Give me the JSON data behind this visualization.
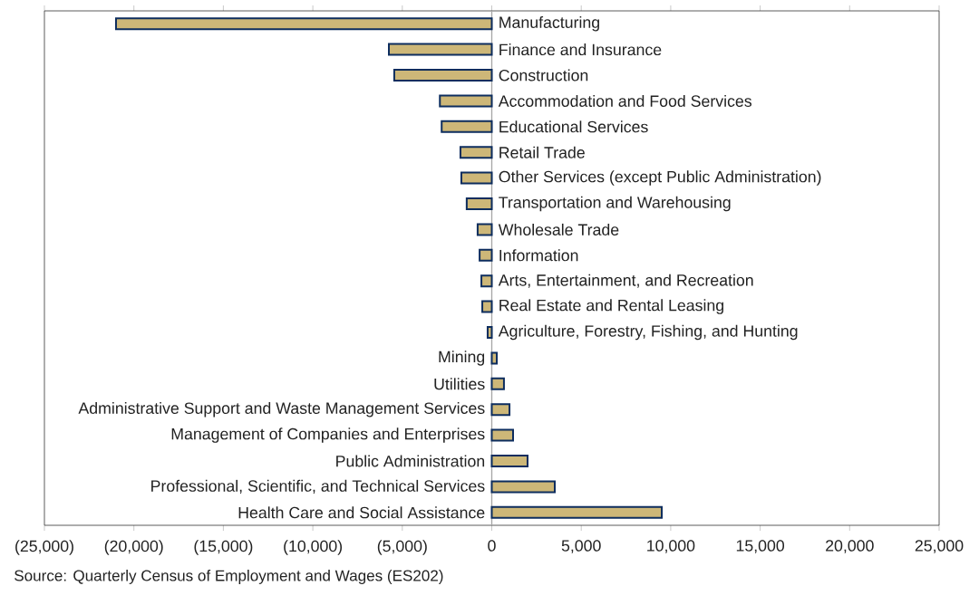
{
  "chart_data": {
    "type": "bar",
    "orientation": "horizontal",
    "categories": [
      "Manufacturing",
      "Finance and Insurance",
      "Construction",
      "Accommodation and Food Services",
      "Educational Services",
      "Retail Trade",
      "Other Services (except Public Administration)",
      "Transportation and Warehousing",
      "Wholesale Trade",
      "Information",
      "Arts, Entertainment, and Recreation",
      "Real Estate and Rental Leasing",
      "Agriculture, Forestry, Fishing, and Hunting",
      "Mining",
      "Utilities",
      "Administrative Support and Waste Management Services",
      "Management of Companies and Enterprises",
      "Public Administration",
      "Professional, Scientific, and Technical Services",
      "Health Care and Social Assistance"
    ],
    "values": [
      -21000,
      -5750,
      -5450,
      -2900,
      -2800,
      -1750,
      -1700,
      -1400,
      -790,
      -680,
      -580,
      -530,
      -230,
      280,
      680,
      990,
      1190,
      2000,
      3520,
      9500
    ],
    "color": "#cdb778",
    "xlim": [
      -25000,
      25000
    ],
    "xticks": [
      {
        "value": -25000,
        "label": "(25,000)"
      },
      {
        "value": -20000,
        "label": "(20,000)"
      },
      {
        "value": -15000,
        "label": "(15,000)"
      },
      {
        "value": -10000,
        "label": "(10,000)"
      },
      {
        "value": -5000,
        "label": "(5,000)"
      },
      0,
      {
        "value": 5000,
        "label": "5,000"
      },
      {
        "value": 10000,
        "label": "10,000"
      },
      {
        "value": 15000,
        "label": "15,000"
      },
      {
        "value": 20000,
        "label": "20,000"
      },
      {
        "value": 25000,
        "label": "25,000"
      }
    ],
    "annotations": [
      "Source: Quarterly Census of Employment and Wages (ES202)"
    ]
  }
}
